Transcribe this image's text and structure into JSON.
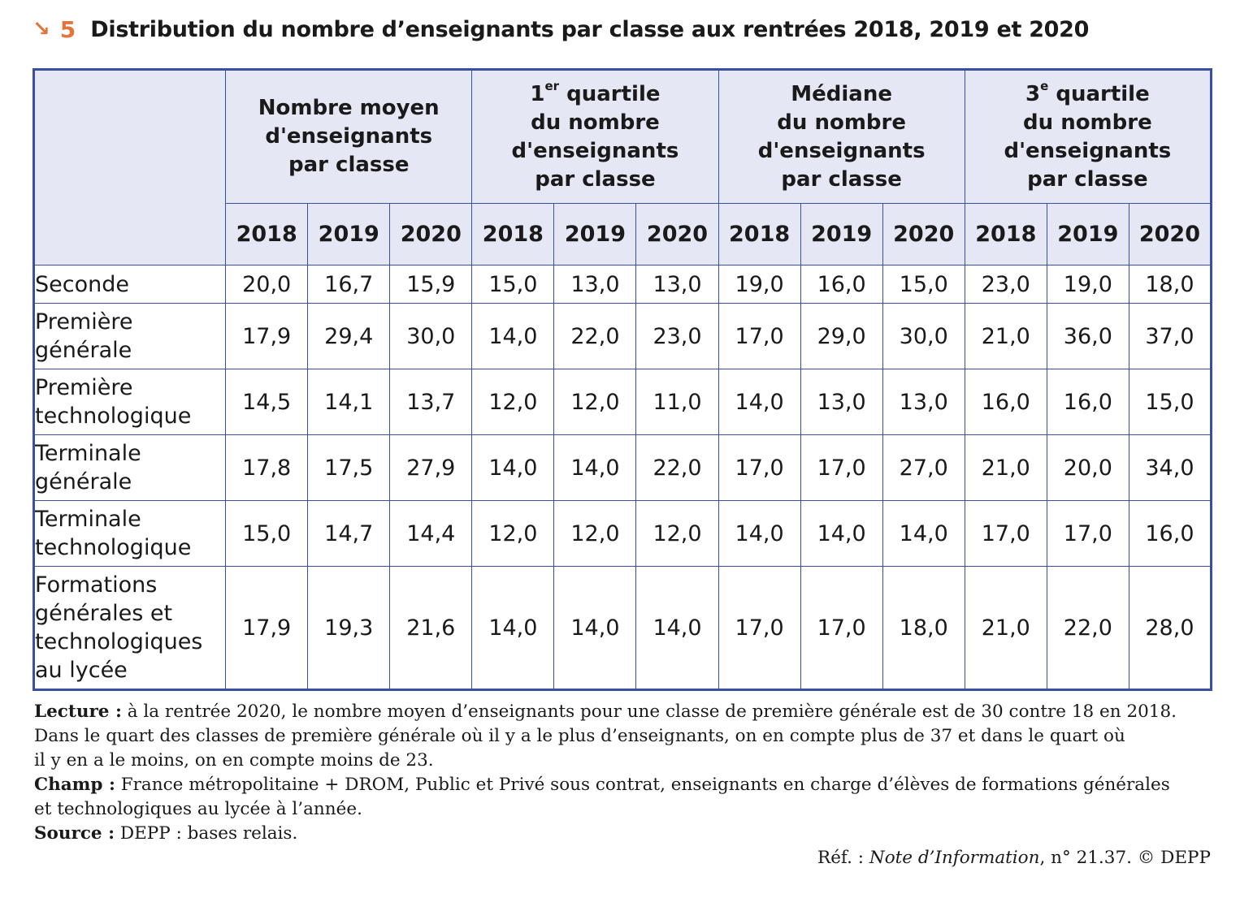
{
  "title": {
    "arrow": "↘",
    "number": "5",
    "text": "Distribution du nombre d’enseignants par classe aux rentrées 2018, 2019 et 2020"
  },
  "table": {
    "groups": [
      {
        "lines": [
          "Nombre moyen",
          "d'enseignants",
          "par classe"
        ]
      },
      {
        "first": "1",
        "sup": "er",
        "first_rest": " quartile",
        "lines": [
          "du nombre",
          "d'enseignants",
          "par classe"
        ]
      },
      {
        "lines": [
          "Médiane",
          "du nombre",
          "d'enseignants",
          "par classe"
        ]
      },
      {
        "first": "3",
        "sup": "e",
        "first_rest": " quartile",
        "lines": [
          "du nombre",
          "d'enseignants",
          "par classe"
        ]
      }
    ],
    "years": [
      "2018",
      "2019",
      "2020"
    ],
    "rows": [
      {
        "label": [
          "Seconde"
        ],
        "values": [
          "20,0",
          "16,7",
          "15,9",
          "15,0",
          "13,0",
          "13,0",
          "19,0",
          "16,0",
          "15,0",
          "23,0",
          "19,0",
          "18,0"
        ]
      },
      {
        "label": [
          "Première",
          "générale"
        ],
        "values": [
          "17,9",
          "29,4",
          "30,0",
          "14,0",
          "22,0",
          "23,0",
          "17,0",
          "29,0",
          "30,0",
          "21,0",
          "36,0",
          "37,0"
        ]
      },
      {
        "label": [
          "Première",
          "technologique"
        ],
        "values": [
          "14,5",
          "14,1",
          "13,7",
          "12,0",
          "12,0",
          "11,0",
          "14,0",
          "13,0",
          "13,0",
          "16,0",
          "16,0",
          "15,0"
        ]
      },
      {
        "label": [
          "Terminale",
          "générale"
        ],
        "values": [
          "17,8",
          "17,5",
          "27,9",
          "14,0",
          "14,0",
          "22,0",
          "17,0",
          "17,0",
          "27,0",
          "21,0",
          "20,0",
          "34,0"
        ]
      },
      {
        "label": [
          "Terminale",
          "technologique"
        ],
        "values": [
          "15,0",
          "14,7",
          "14,4",
          "12,0",
          "12,0",
          "12,0",
          "14,0",
          "14,0",
          "14,0",
          "17,0",
          "17,0",
          "16,0"
        ]
      },
      {
        "label": [
          "Formations",
          "générales et",
          "technologiques",
          "au lycée"
        ],
        "values": [
          "17,9",
          "19,3",
          "21,6",
          "14,0",
          "14,0",
          "14,0",
          "17,0",
          "17,0",
          "18,0",
          "21,0",
          "22,0",
          "28,0"
        ]
      }
    ]
  },
  "notes": {
    "lecture_label": "Lecture :",
    "lecture_lines": [
      "à la rentrée 2020, le nombre moyen d’enseignants pour une classe de première générale est de 30 contre 18 en 2018.",
      "Dans le quart des classes de première générale où il y a le plus d’enseignants, on en compte plus de 37 et dans le quart où",
      "il y en a le moins, on en compte moins de 23."
    ],
    "champ_label": "Champ :",
    "champ_lines": [
      "France métropolitaine + DROM, Public et Privé sous contrat, enseignants en charge d’élèves de formations générales",
      "et technologiques au lycée à l’année."
    ],
    "source_label": "Source :",
    "source_text": "DEPP : bases relais."
  },
  "ref": {
    "prefix": "Réf. : ",
    "publication": "Note d’Information",
    "suffix": ", n° 21.37. © DEPP"
  }
}
